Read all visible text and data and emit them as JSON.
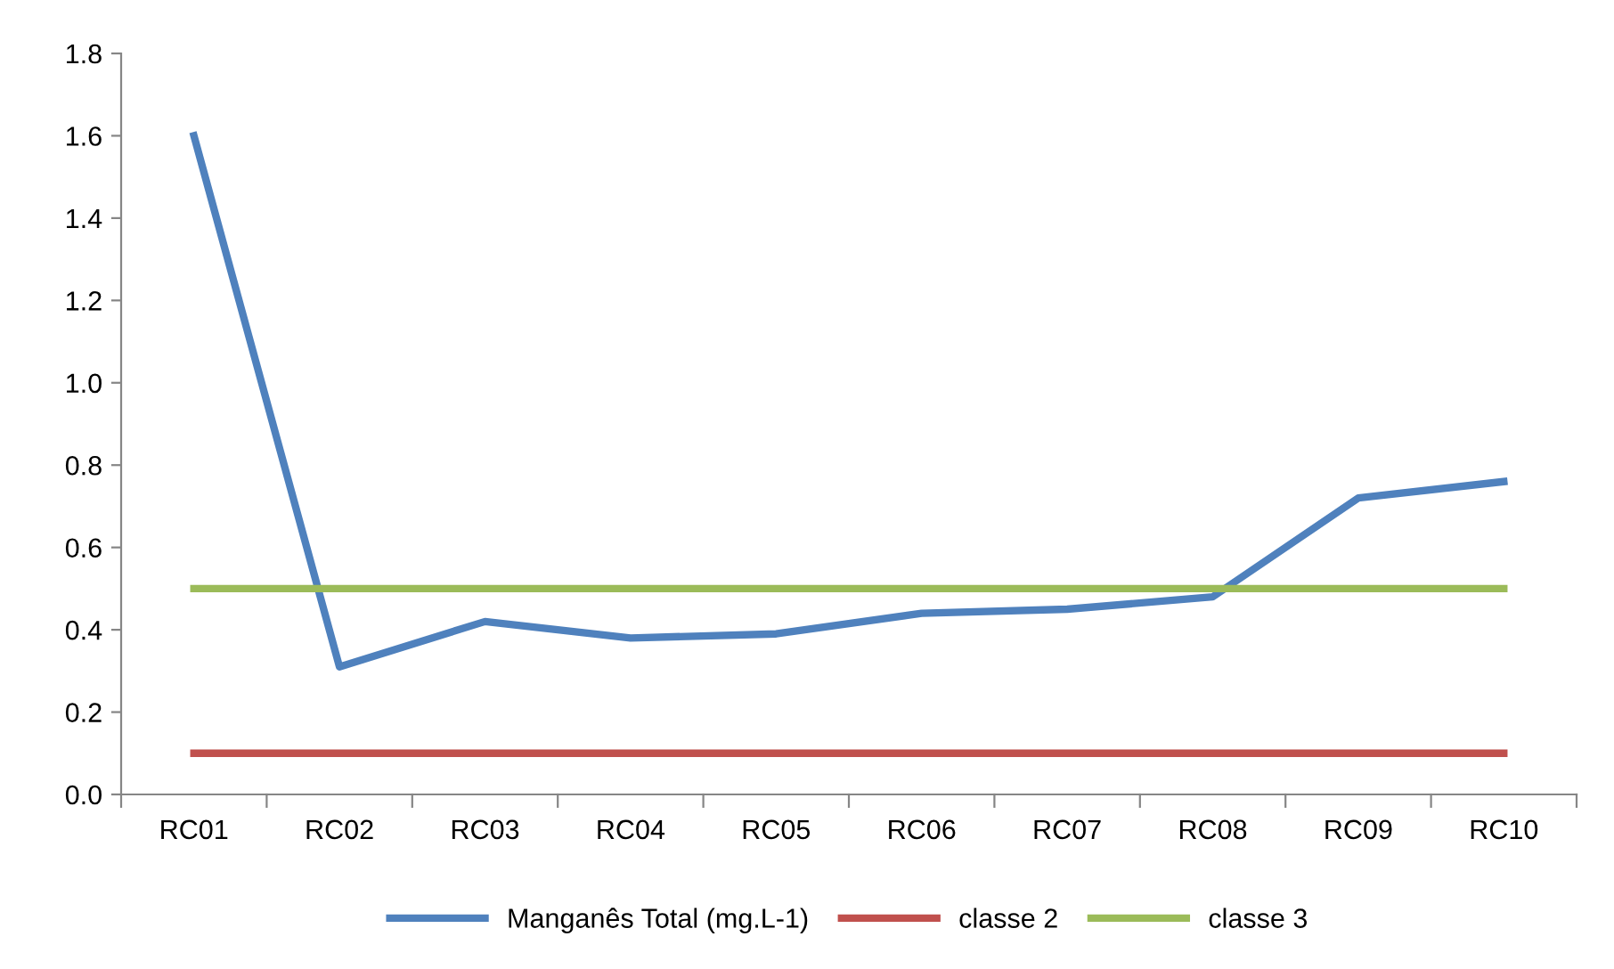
{
  "chart_data": {
    "type": "line",
    "categories": [
      "RC01",
      "RC02",
      "RC03",
      "RC04",
      "RC05",
      "RC06",
      "RC07",
      "RC08",
      "RC09",
      "RC10"
    ],
    "series": [
      {
        "name": "Manganês Total (mg.L-1)",
        "color": "#4f81bd",
        "values": [
          1.6,
          0.31,
          0.42,
          0.38,
          0.39,
          0.44,
          0.45,
          0.48,
          0.72,
          0.76
        ]
      },
      {
        "name": "classe 2",
        "color": "#c0504d",
        "values": [
          0.1,
          0.1,
          0.1,
          0.1,
          0.1,
          0.1,
          0.1,
          0.1,
          0.1,
          0.1
        ]
      },
      {
        "name": "classe 3",
        "color": "#9bbb59",
        "values": [
          0.5,
          0.5,
          0.5,
          0.5,
          0.5,
          0.5,
          0.5,
          0.5,
          0.5,
          0.5
        ]
      }
    ],
    "ylim": [
      0,
      1.8
    ],
    "yticks": [
      {
        "value": 0,
        "label": "0.0"
      },
      0.2,
      0.4,
      0.6,
      0.8,
      {
        "value": 1,
        "label": "1.0"
      },
      1.2,
      1.4,
      1.6,
      1.8
    ],
    "grid": false,
    "legend": "bottom",
    "marker": "none",
    "line_style": "solid"
  }
}
